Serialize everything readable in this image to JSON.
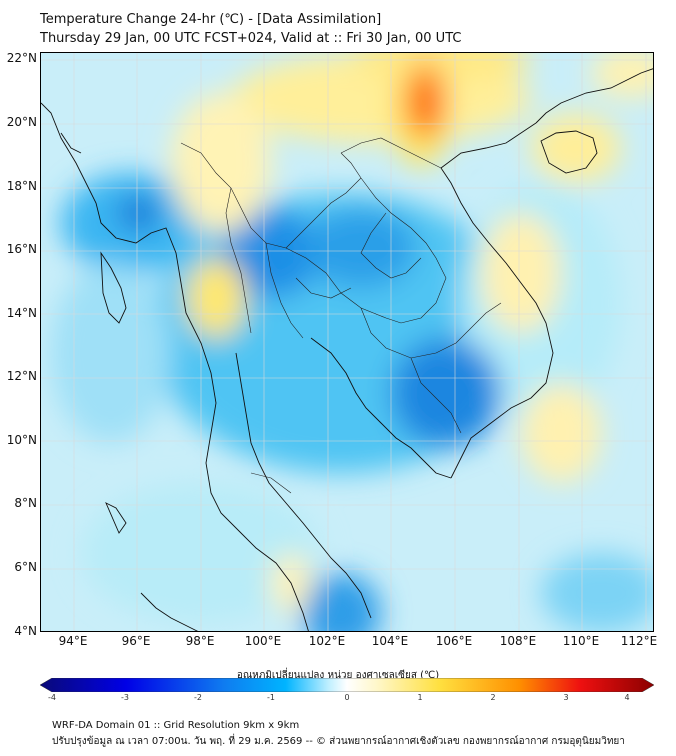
{
  "header": {
    "title_line1": "Temperature Change 24-hr (℃) - [Data Assimilation]",
    "title_line2": "Thursday 29 Jan, 00 UTC FCST+024, Valid at :: Fri 30 Jan, 00 UTC"
  },
  "map": {
    "lat_labels": [
      "22°N",
      "20°N",
      "18°N",
      "16°N",
      "14°N",
      "12°N",
      "10°N",
      "8°N",
      "6°N",
      "4°N"
    ],
    "lon_labels": [
      "94°E",
      "96°E",
      "98°E",
      "100°E",
      "102°E",
      "104°E",
      "106°E",
      "108°E",
      "110°E",
      "112°E"
    ],
    "extent": {
      "lon_min": 93.0,
      "lon_max": 112.3,
      "lat_min": 4.0,
      "lat_max": 22.2
    },
    "grid": true,
    "warm_areas": [
      "northern Vietnam / southern China",
      "Hainan",
      "northern Laos",
      "western Thailand",
      "southern Vietnam coast"
    ],
    "cool_areas": [
      "central Thailand",
      "northeast Thailand",
      "Cambodia",
      "Myanmar coast",
      "Gulf of Thailand"
    ]
  },
  "colorbar": {
    "title": "อุณหภูมิเปลี่ยนแปลง หน่วย องศาเซลเซียส (℃)",
    "ticks": [
      "-4",
      "-3",
      "-2",
      "-1",
      "0",
      "1",
      "2",
      "3",
      "4"
    ],
    "colors": {
      "min": "#0a0a78",
      "cold": "#0000e6",
      "cool": "#00b4ff",
      "neutral": "#ffffff",
      "warm": "#ffe040",
      "hot": "#ff6000",
      "max": "#8b0000"
    }
  },
  "footer": {
    "line1": "WRF-DA Domain 01 :: Grid Resolution 9km x 9km",
    "line2": "ปรับปรุงข้อมูล ณ เวลา 07:00น. วัน พฤ. ที่ 29 ม.ค. 2569 -- © ส่วนพยากรณ์อากาศเชิงตัวเลข กองพยากรณ์อากาศ กรมอุตุนิยมวิทยา"
  }
}
